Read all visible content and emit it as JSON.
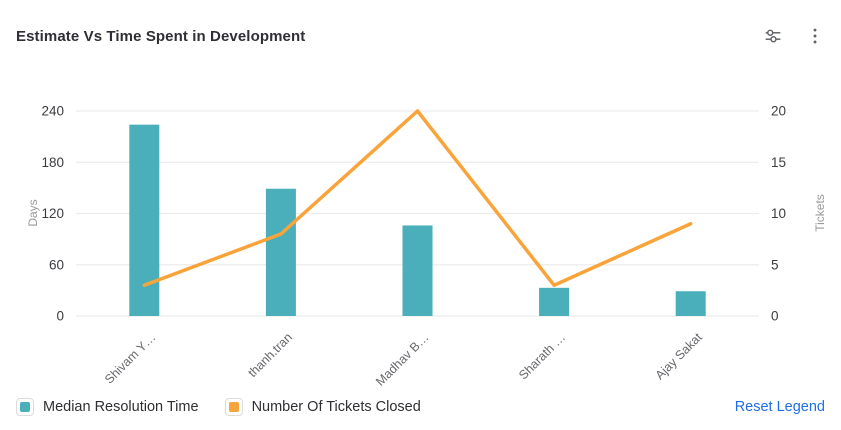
{
  "header": {
    "title": "Estimate Vs Time Spent in Development",
    "icons": [
      "filter-sliders-icon",
      "more-menu-icon"
    ]
  },
  "chart_data": {
    "type": "bar",
    "subtype": "combo-bar-line-dual-axis",
    "title": "Estimate Vs Time Spent in Development",
    "categories": [
      "Shivam Y…",
      "thanh.tran",
      "Madhav B…",
      "Sharath …",
      "Ajay Sakat"
    ],
    "series": [
      {
        "name": "Median Resolution Time",
        "type": "bar",
        "axis": "left",
        "color": "#4AAFBA",
        "values": [
          224,
          149,
          106,
          33,
          29
        ]
      },
      {
        "name": "Number Of Tickets Closed",
        "type": "line",
        "axis": "right",
        "color": "#F9A43B",
        "values": [
          3,
          8,
          20,
          3,
          9
        ]
      }
    ],
    "left_axis": {
      "label": "Days",
      "min": 0,
      "max": 240,
      "step": 60,
      "ticks": [
        0,
        60,
        120,
        180,
        240
      ]
    },
    "right_axis": {
      "label": "Tickets",
      "min": 0,
      "max": 20,
      "step": 5,
      "ticks": [
        0,
        5,
        10,
        15,
        20
      ]
    },
    "grid": true,
    "legend_position": "bottom-left",
    "x_label_rotation": -45
  },
  "footer": {
    "reset_label": "Reset Legend"
  },
  "colors": {
    "bar": "#4AAFBA",
    "line": "#F9A43B",
    "grid_line": "#ECECEC",
    "tick_text": "#3C3C41",
    "axis_name_text": "#9A9A9E",
    "x_label_text": "#67686C",
    "title_text": "#2F2F35",
    "legend_text": "#2F2F33",
    "link": "#1E6FE6",
    "icon": "#5F6368",
    "swatch_border": "#DCDCDC"
  }
}
